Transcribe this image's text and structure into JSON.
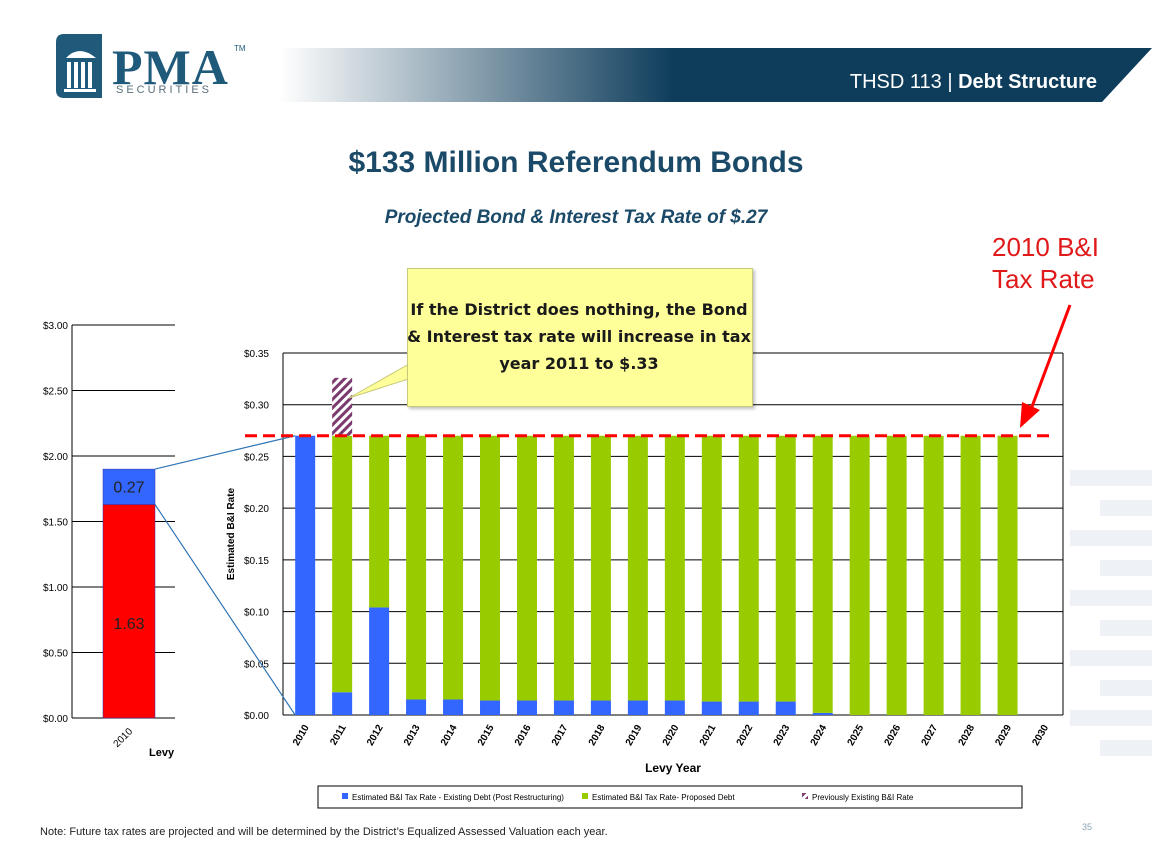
{
  "header": {
    "brand": "PMA",
    "brand_sub": "SECURITIES",
    "trademark": "TM",
    "section_prefix": "THSD 113 | ",
    "section_title": "Debt Structure"
  },
  "title": "$133 Million Referendum Bonds",
  "subtitle": "Projected Bond & Interest Tax Rate of $.27",
  "rate_annotation": "2010 B&I Tax Rate",
  "callout": "If the District does nothing, the Bond & Interest tax rate will increase in tax year 2011 to $.33",
  "note": "Note: Future tax rates are projected and will be determined by the District’s Equalized Assessed Valuation each year.",
  "page_number": "35",
  "colors": {
    "existing": "#3366ff",
    "proposed": "#99cc00",
    "previous": "#7b3b6f",
    "levy_red": "#ff0000",
    "reference_line": "#ff0000",
    "header_navy": "#0e3d5c",
    "title_blue": "#1b4a68"
  },
  "chart_data": [
    {
      "type": "bar",
      "stacked": true,
      "categories": [
        "2010"
      ],
      "series": [
        {
          "values": [
            1.63
          ]
        },
        {
          "values": [
            0.27
          ]
        }
      ],
      "data_labels": [
        "1.63",
        "0.27"
      ],
      "ylim": [
        0,
        3.0
      ],
      "yticks": [
        "$0.00",
        "$0.50",
        "$1.00",
        "$1.50",
        "$2.00",
        "$2.50",
        "$3.00"
      ],
      "xlabel": "Levy",
      "grid": true
    },
    {
      "type": "bar",
      "stacked": true,
      "categories": [
        "2010",
        "2011",
        "2012",
        "2013",
        "2014",
        "2015",
        "2016",
        "2017",
        "2018",
        "2019",
        "2020",
        "2021",
        "2022",
        "2023",
        "2024",
        "2025",
        "2026",
        "2027",
        "2028",
        "2029",
        "2030"
      ],
      "series": [
        {
          "name": "Estimated B&I Tax Rate - Existing Debt (Post Restructuring)",
          "values": [
            0.27,
            0.022,
            0.104,
            0.015,
            0.015,
            0.014,
            0.014,
            0.014,
            0.014,
            0.014,
            0.014,
            0.013,
            0.013,
            0.013,
            0.002,
            0,
            0,
            0,
            0,
            0,
            0
          ]
        },
        {
          "name": "Estimated B&I Tax Rate- Proposed Debt",
          "values": [
            0,
            0.248,
            0.166,
            0.255,
            0.255,
            0.256,
            0.256,
            0.256,
            0.256,
            0.256,
            0.256,
            0.257,
            0.257,
            0.257,
            0.268,
            0.27,
            0.27,
            0.27,
            0.27,
            0.27,
            0
          ]
        },
        {
          "name": "Previously Existing B&I Rate",
          "values": [
            0,
            0.056,
            0,
            0,
            0,
            0,
            0,
            0,
            0,
            0,
            0,
            0,
            0,
            0,
            0,
            0,
            0,
            0,
            0,
            0,
            0
          ]
        }
      ],
      "reference_line": 0.27,
      "ylim": [
        0,
        0.35
      ],
      "yticks": [
        "$0.00",
        "$0.05",
        "$0.10",
        "$0.15",
        "$0.20",
        "$0.25",
        "$0.30",
        "$0.35"
      ],
      "xlabel": "Levy Year",
      "ylabel": "Estimated B&I Rate",
      "legend": "bottom",
      "grid": true
    }
  ]
}
